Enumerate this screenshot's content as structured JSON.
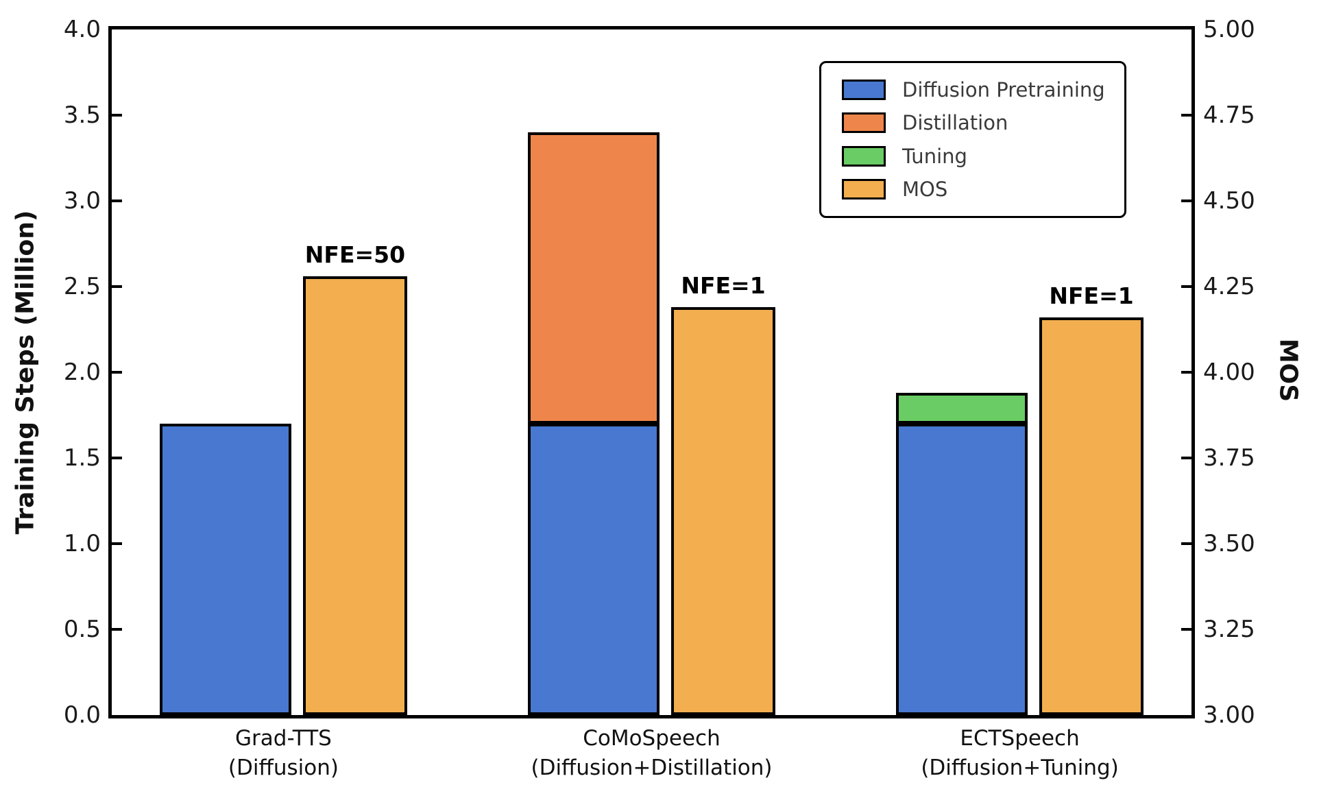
{
  "chart_data": {
    "type": "bar",
    "title": "",
    "ylabel_left": "Training Steps (Million)",
    "ylabel_right": "MOS",
    "ylim_left": [
      0.0,
      4.0
    ],
    "ylim_right": [
      3.0,
      5.0
    ],
    "ytick_step_left": 0.5,
    "yticks_left": [
      "0.0",
      "0.5",
      "1.0",
      "1.5",
      "2.0",
      "2.5",
      "3.0",
      "3.5",
      "4.0"
    ],
    "yticks_right": [
      "3.00",
      "3.25",
      "3.50",
      "3.75",
      "4.00",
      "4.25",
      "4.50",
      "4.75",
      "5.00"
    ],
    "grid": false,
    "legend_position": "upper right",
    "categories": [
      {
        "line1": "Grad-TTS",
        "line2": "(Diffusion)"
      },
      {
        "line1": "CoMoSpeech",
        "line2": "(Diffusion+Distillation)"
      },
      {
        "line1": "ECTSpeech",
        "line2": "(Diffusion+Tuning)"
      }
    ],
    "stacked_series": [
      {
        "name": "Diffusion Pretraining",
        "color": "#4878D0",
        "axis": "left",
        "values": [
          1.7,
          1.7,
          1.7
        ]
      },
      {
        "name": "Distillation",
        "color": "#EE854A",
        "axis": "left",
        "values": [
          0,
          1.7,
          0
        ]
      },
      {
        "name": "Tuning",
        "color": "#6ACC64",
        "axis": "left",
        "values": [
          0,
          0,
          0.18
        ]
      }
    ],
    "stacked_totals_left": [
      1.7,
      3.4,
      1.88
    ],
    "mos_series": {
      "name": "MOS",
      "color": "#F2AE4F",
      "axis": "right",
      "values": [
        4.28,
        4.19,
        4.16
      ]
    },
    "annotations": [
      {
        "text": "NFE=50",
        "category_index": 0
      },
      {
        "text": "NFE=1",
        "category_index": 1
      },
      {
        "text": "NFE=1",
        "category_index": 2
      }
    ]
  },
  "colors": {
    "axis": "#000000",
    "bar_border": "#000000",
    "tick_label": "#1a1a1a",
    "legend_text": "#3a3a3a",
    "background": "#ffffff"
  }
}
